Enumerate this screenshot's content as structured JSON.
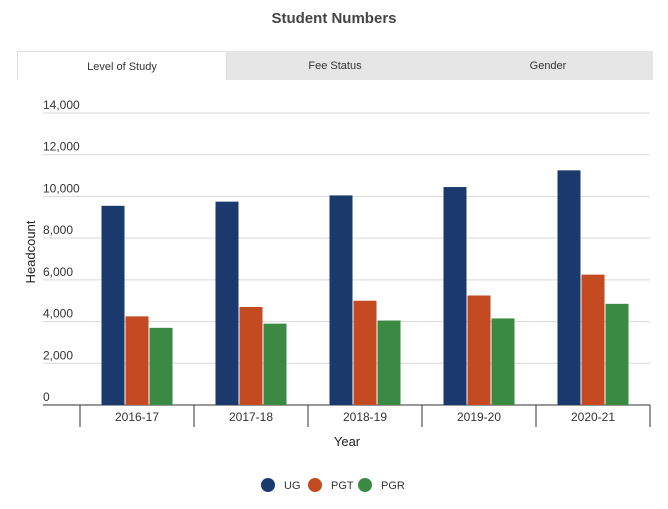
{
  "chart_data": {
    "type": "bar",
    "title": "Student Numbers",
    "xlabel": "Year",
    "ylabel": "Headcount",
    "ylim": [
      0,
      14000
    ],
    "yticks": [
      0,
      2000,
      4000,
      6000,
      8000,
      10000,
      12000,
      14000
    ],
    "ytick_labels": [
      "0",
      "2,000",
      "4,000",
      "6,000",
      "8,000",
      "10,000",
      "12,000",
      "14,000"
    ],
    "categories": [
      "2016-17",
      "2017-18",
      "2018-19",
      "2019-20",
      "2020-21"
    ],
    "series": [
      {
        "name": "UG",
        "color": "#1a3a6e",
        "values": [
          9550,
          9750,
          10050,
          10450,
          11250
        ]
      },
      {
        "name": "PGT",
        "color": "#c44a22",
        "values": [
          4250,
          4700,
          5000,
          5250,
          6250
        ]
      },
      {
        "name": "PGR",
        "color": "#3a8a44",
        "values": [
          3700,
          3900,
          4050,
          4150,
          4850
        ]
      }
    ],
    "grid": true,
    "legend_position": "bottom-center"
  },
  "tabs": [
    {
      "label": "Level of Study",
      "active": true
    },
    {
      "label": "Fee Status",
      "active": false
    },
    {
      "label": "Gender",
      "active": false
    }
  ]
}
